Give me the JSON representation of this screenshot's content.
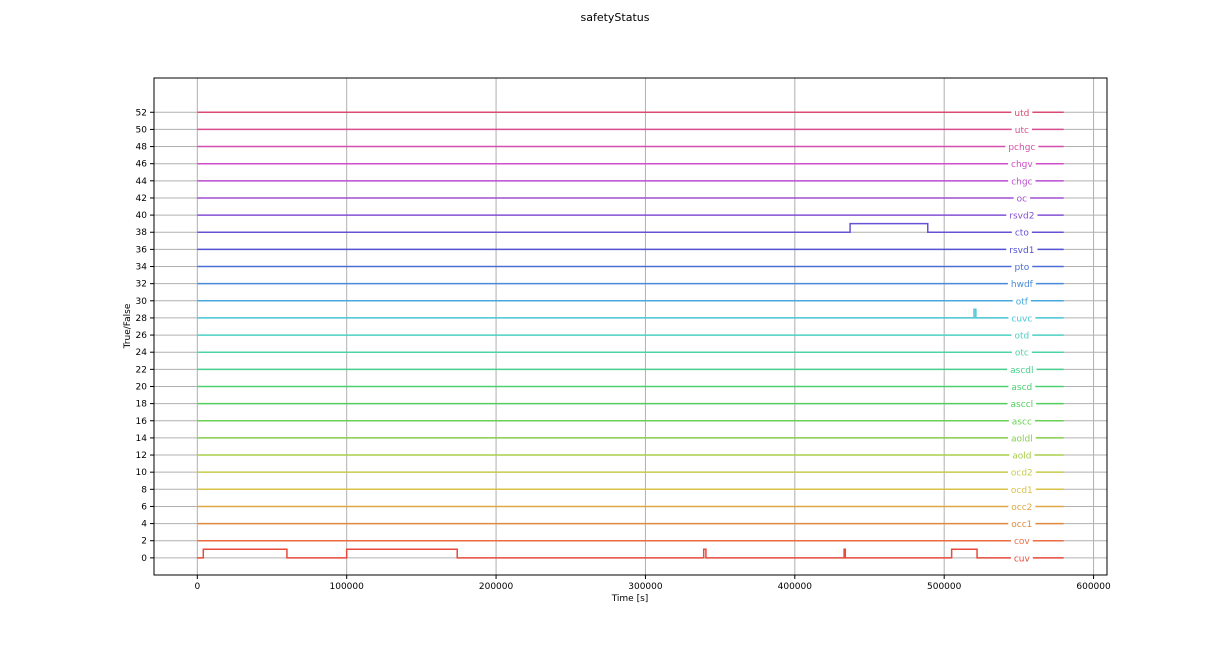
{
  "chart_data": {
    "type": "line",
    "title": "safetyStatus",
    "xlabel": "Time [s]",
    "ylabel": "True/False",
    "xlim": [
      -29000,
      609000
    ],
    "ylim": [
      -2,
      56
    ],
    "xticks": [
      0,
      100000,
      200000,
      300000,
      400000,
      500000,
      600000
    ],
    "xtick_labels": [
      "0",
      "100000",
      "200000",
      "300000",
      "400000",
      "500000",
      "600000"
    ],
    "yticks": [
      0,
      2,
      4,
      6,
      8,
      10,
      12,
      14,
      16,
      18,
      20,
      22,
      24,
      26,
      28,
      30,
      32,
      34,
      36,
      38,
      40,
      42,
      44,
      46,
      48,
      50,
      52
    ],
    "ytick_labels": [
      "0",
      "2",
      "4",
      "6",
      "8",
      "10",
      "12",
      "14",
      "16",
      "18",
      "20",
      "22",
      "24",
      "26",
      "28",
      "30",
      "32",
      "34",
      "36",
      "38",
      "40",
      "42",
      "44",
      "46",
      "48",
      "50",
      "52"
    ],
    "grid": true,
    "x_range": [
      0,
      580000
    ],
    "label_x": 552000,
    "series": [
      {
        "name": "cuv",
        "baseline": 0,
        "color": "#e84a3c",
        "points": [
          [
            0,
            0
          ],
          [
            4000,
            0
          ],
          [
            4000,
            1
          ],
          [
            60000,
            1
          ],
          [
            60000,
            0
          ],
          [
            100000,
            0
          ],
          [
            100000,
            1
          ],
          [
            174000,
            1
          ],
          [
            174000,
            0
          ],
          [
            339000,
            0
          ],
          [
            339000,
            1
          ],
          [
            340500,
            1
          ],
          [
            340500,
            0
          ],
          [
            433000,
            0
          ],
          [
            433000,
            1
          ],
          [
            433800,
            1
          ],
          [
            433800,
            0
          ],
          [
            505000,
            0
          ],
          [
            505000,
            1
          ],
          [
            522000,
            1
          ],
          [
            522000,
            0
          ],
          [
            580000,
            0
          ]
        ]
      },
      {
        "name": "cov",
        "baseline": 2,
        "color": "#ea6d43",
        "points": [
          [
            0,
            2
          ],
          [
            580000,
            2
          ]
        ]
      },
      {
        "name": "occ1",
        "baseline": 4,
        "color": "#e08a3f",
        "points": [
          [
            0,
            4
          ],
          [
            580000,
            4
          ]
        ]
      },
      {
        "name": "occ2",
        "baseline": 6,
        "color": "#e0a845",
        "points": [
          [
            0,
            6
          ],
          [
            580000,
            6
          ]
        ]
      },
      {
        "name": "ocd1",
        "baseline": 8,
        "color": "#d8c248",
        "points": [
          [
            0,
            8
          ],
          [
            580000,
            8
          ]
        ]
      },
      {
        "name": "ocd2",
        "baseline": 10,
        "color": "#c8cc4c",
        "points": [
          [
            0,
            10
          ],
          [
            580000,
            10
          ]
        ]
      },
      {
        "name": "aold",
        "baseline": 12,
        "color": "#a8cf4c",
        "points": [
          [
            0,
            12
          ],
          [
            580000,
            12
          ]
        ]
      },
      {
        "name": "aoldl",
        "baseline": 14,
        "color": "#88cf4c",
        "points": [
          [
            0,
            14
          ],
          [
            580000,
            14
          ]
        ]
      },
      {
        "name": "ascc",
        "baseline": 16,
        "color": "#6ad054",
        "points": [
          [
            0,
            16
          ],
          [
            580000,
            16
          ]
        ]
      },
      {
        "name": "asccl",
        "baseline": 18,
        "color": "#52cf5c",
        "points": [
          [
            0,
            18
          ],
          [
            580000,
            18
          ]
        ]
      },
      {
        "name": "ascd",
        "baseline": 20,
        "color": "#4cd072",
        "points": [
          [
            0,
            20
          ],
          [
            580000,
            20
          ]
        ]
      },
      {
        "name": "ascdl",
        "baseline": 22,
        "color": "#48cf8c",
        "points": [
          [
            0,
            22
          ],
          [
            580000,
            22
          ]
        ]
      },
      {
        "name": "otc",
        "baseline": 24,
        "color": "#4cd3a8",
        "points": [
          [
            0,
            24
          ],
          [
            580000,
            24
          ]
        ]
      },
      {
        "name": "otd",
        "baseline": 26,
        "color": "#4cd2c4",
        "points": [
          [
            0,
            26
          ],
          [
            580000,
            26
          ]
        ]
      },
      {
        "name": "cuvc",
        "baseline": 28,
        "color": "#48c6d6",
        "points": [
          [
            0,
            28
          ],
          [
            520000,
            28
          ],
          [
            520000,
            29
          ],
          [
            521200,
            29
          ],
          [
            521200,
            28
          ],
          [
            580000,
            28
          ]
        ]
      },
      {
        "name": "otf",
        "baseline": 30,
        "color": "#48a8dc",
        "points": [
          [
            0,
            30
          ],
          [
            580000,
            30
          ]
        ]
      },
      {
        "name": "hwdf",
        "baseline": 32,
        "color": "#4a8ad8",
        "points": [
          [
            0,
            32
          ],
          [
            580000,
            32
          ]
        ]
      },
      {
        "name": "pto",
        "baseline": 34,
        "color": "#4a6ed6",
        "points": [
          [
            0,
            34
          ],
          [
            580000,
            34
          ]
        ]
      },
      {
        "name": "rsvd1",
        "baseline": 36,
        "color": "#5252d4",
        "points": [
          [
            0,
            36
          ],
          [
            580000,
            36
          ]
        ]
      },
      {
        "name": "cto",
        "baseline": 38,
        "color": "#6a50d4",
        "points": [
          [
            0,
            38
          ],
          [
            437000,
            38
          ],
          [
            437000,
            39
          ],
          [
            489000,
            39
          ],
          [
            489000,
            38
          ],
          [
            580000,
            38
          ]
        ]
      },
      {
        "name": "rsvd2",
        "baseline": 40,
        "color": "#8450d4",
        "points": [
          [
            0,
            40
          ],
          [
            580000,
            40
          ]
        ]
      },
      {
        "name": "oc",
        "baseline": 42,
        "color": "#a04ed4",
        "points": [
          [
            0,
            42
          ],
          [
            580000,
            42
          ]
        ]
      },
      {
        "name": "chgc",
        "baseline": 44,
        "color": "#bc4ed2",
        "points": [
          [
            0,
            44
          ],
          [
            580000,
            44
          ]
        ]
      },
      {
        "name": "chgv",
        "baseline": 46,
        "color": "#d04ec8",
        "points": [
          [
            0,
            46
          ],
          [
            580000,
            46
          ]
        ]
      },
      {
        "name": "pchgc",
        "baseline": 48,
        "color": "#d44eae",
        "points": [
          [
            0,
            48
          ],
          [
            580000,
            48
          ]
        ]
      },
      {
        "name": "utc",
        "baseline": 50,
        "color": "#d84e92",
        "points": [
          [
            0,
            50
          ],
          [
            580000,
            50
          ]
        ]
      },
      {
        "name": "utd",
        "baseline": 52,
        "color": "#d84c72",
        "points": [
          [
            0,
            52
          ],
          [
            580000,
            52
          ]
        ]
      }
    ]
  }
}
